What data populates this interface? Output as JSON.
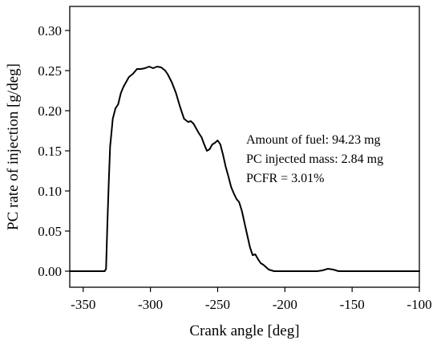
{
  "chart_data": {
    "type": "line",
    "title": "",
    "xlabel": "Crank angle [deg]",
    "ylabel": "PC rate of injection [g/deg]",
    "xlim": [
      -360,
      -100
    ],
    "ylim": [
      -0.02,
      0.33
    ],
    "xticks": [
      -350,
      -300,
      -250,
      -200,
      -150,
      -100
    ],
    "xtick_labels": [
      "-350",
      "-300",
      "-250",
      "-200",
      "-150",
      "-100"
    ],
    "yticks": [
      0.0,
      0.05,
      0.1,
      0.15,
      0.2,
      0.25,
      0.3
    ],
    "ytick_labels": [
      "0.00",
      "0.05",
      "0.10",
      "0.15",
      "0.20",
      "0.25",
      "0.30"
    ],
    "grid": false,
    "annotations": [
      "Amount of fuel: 94.23 mg",
      "PC injected mass: 2.84 mg",
      "PCFR = 3.01%"
    ],
    "series": [
      {
        "color": "#000000",
        "x": [
          -360,
          -334,
          -333,
          -332,
          -331,
          -330,
          -328,
          -326,
          -324,
          -322,
          -320,
          -318,
          -316,
          -313,
          -310,
          -307,
          -304,
          -301,
          -298,
          -295,
          -292,
          -289,
          -287,
          -284,
          -281,
          -278,
          -275,
          -272,
          -270,
          -268,
          -266,
          -264,
          -262,
          -260,
          -258,
          -256,
          -254,
          -252,
          -250,
          -248,
          -246,
          -244,
          -242,
          -240,
          -238,
          -236,
          -234,
          -232,
          -230,
          -228,
          -226,
          -224,
          -222,
          -220,
          -218,
          -216,
          -214,
          -212,
          -210,
          -208,
          -206,
          -204,
          -200,
          -190,
          -180,
          -176,
          -172,
          -168,
          -164,
          -160,
          -150,
          -130,
          -100
        ],
        "y": [
          0.0,
          0.0,
          0.003,
          0.06,
          0.11,
          0.155,
          0.19,
          0.203,
          0.208,
          0.222,
          0.23,
          0.236,
          0.242,
          0.246,
          0.252,
          0.252,
          0.253,
          0.255,
          0.253,
          0.255,
          0.254,
          0.25,
          0.245,
          0.235,
          0.222,
          0.205,
          0.19,
          0.186,
          0.187,
          0.184,
          0.178,
          0.172,
          0.167,
          0.158,
          0.15,
          0.152,
          0.158,
          0.16,
          0.163,
          0.158,
          0.145,
          0.13,
          0.118,
          0.105,
          0.097,
          0.09,
          0.086,
          0.075,
          0.06,
          0.045,
          0.03,
          0.02,
          0.021,
          0.015,
          0.01,
          0.008,
          0.005,
          0.002,
          0.001,
          0.0,
          0.0,
          0.0,
          0.0,
          0.0,
          0.0,
          0.0,
          0.001,
          0.003,
          0.002,
          0.0,
          0.0,
          0.0,
          0.0
        ]
      }
    ]
  }
}
